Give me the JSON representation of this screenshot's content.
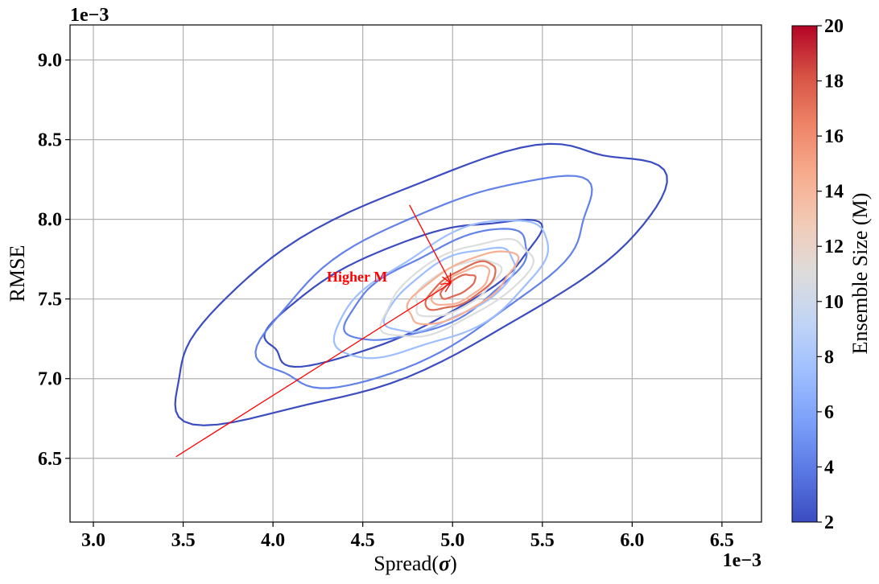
{
  "chart_data": {
    "type": "contour",
    "xlabel": "Spread(σ)",
    "xlabel_main": "Spread(",
    "xlabel_symbol": "σ",
    "xlabel_close": ")",
    "ylabel": "RMSE",
    "x_offset_label": "1e−3",
    "y_offset_label": "1e−3",
    "xlim": [
      2.87,
      6.72
    ],
    "ylim": [
      6.1,
      9.22
    ],
    "xticks": [
      3.0,
      3.5,
      4.0,
      4.5,
      5.0,
      5.5,
      6.0,
      6.5
    ],
    "xtick_labels": [
      "3.0",
      "3.5",
      "4.0",
      "4.5",
      "5.0",
      "5.5",
      "6.0",
      "6.5"
    ],
    "yticks": [
      6.5,
      7.0,
      7.5,
      8.0,
      8.5,
      9.0
    ],
    "ytick_labels": [
      "6.5",
      "7.0",
      "7.5",
      "8.0",
      "8.5",
      "9.0"
    ],
    "grid": true,
    "colorbar": {
      "label": "Ensemble Size (M)",
      "cmap": "coolwarm",
      "range": [
        2,
        20
      ],
      "ticks": [
        2,
        4,
        6,
        8,
        10,
        12,
        14,
        16,
        18,
        20
      ],
      "tick_labels": [
        "2",
        "4",
        "6",
        "8",
        "10",
        "12",
        "14",
        "16",
        "18",
        "20"
      ],
      "colors": [
        "#3b4cc0",
        "#5977e3",
        "#7b9ff9",
        "#9ebeff",
        "#c0d4f5",
        "#dddcdc",
        "#f2cbb7",
        "#f7ac8e",
        "#ee8468",
        "#d65244",
        "#b40426"
      ]
    },
    "series": [
      {
        "ensemble_size": 2,
        "color": "#3b4cc0",
        "contours": [
          {
            "cx": 4.78,
            "cy": 7.62,
            "rx": 1.48,
            "ry": 0.34,
            "angle_deg": 25
          },
          {
            "cx": 4.7,
            "cy": 7.55,
            "rx": 0.82,
            "ry": 0.17,
            "angle_deg": 24
          }
        ]
      },
      {
        "ensemble_size": 5,
        "color": "#6282ea",
        "contours": [
          {
            "cx": 4.85,
            "cy": 7.6,
            "rx": 1.02,
            "ry": 0.26,
            "angle_deg": 28
          },
          {
            "cx": 4.92,
            "cy": 7.58,
            "rx": 0.56,
            "ry": 0.14,
            "angle_deg": 27
          }
        ]
      },
      {
        "ensemble_size": 8,
        "color": "#9ebeff",
        "contours": [
          {
            "cx": 4.95,
            "cy": 7.56,
            "rx": 0.66,
            "ry": 0.18,
            "angle_deg": 28
          },
          {
            "cx": 4.99,
            "cy": 7.56,
            "rx": 0.4,
            "ry": 0.11,
            "angle_deg": 28
          }
        ]
      },
      {
        "ensemble_size": 12,
        "color": "#dcdddd",
        "contours": [
          {
            "cx": 5.02,
            "cy": 7.57,
            "rx": 0.46,
            "ry": 0.13,
            "angle_deg": 28
          },
          {
            "cx": 5.02,
            "cy": 7.57,
            "rx": 0.26,
            "ry": 0.08,
            "angle_deg": 28
          }
        ]
      },
      {
        "ensemble_size": 15,
        "color": "#f7af91",
        "contours": [
          {
            "cx": 5.05,
            "cy": 7.57,
            "rx": 0.34,
            "ry": 0.09,
            "angle_deg": 30
          },
          {
            "cx": 5.05,
            "cy": 7.58,
            "rx": 0.18,
            "ry": 0.05,
            "angle_deg": 30
          }
        ]
      },
      {
        "ensemble_size": 18,
        "color": "#de6a53",
        "contours": [
          {
            "cx": 5.05,
            "cy": 7.58,
            "rx": 0.22,
            "ry": 0.06,
            "angle_deg": 30
          },
          {
            "cx": 5.03,
            "cy": 7.58,
            "rx": 0.11,
            "ry": 0.03,
            "angle_deg": 30
          }
        ]
      }
    ],
    "annotation": {
      "text": "Higher M",
      "color": "#ff0000",
      "text_pos": [
        4.3,
        7.61
      ],
      "arrows": [
        {
          "from": [
            3.46,
            6.51
          ],
          "to": [
            4.99,
            7.6
          ]
        },
        {
          "from": [
            4.76,
            8.09
          ],
          "to": [
            4.99,
            7.6
          ]
        }
      ]
    }
  }
}
